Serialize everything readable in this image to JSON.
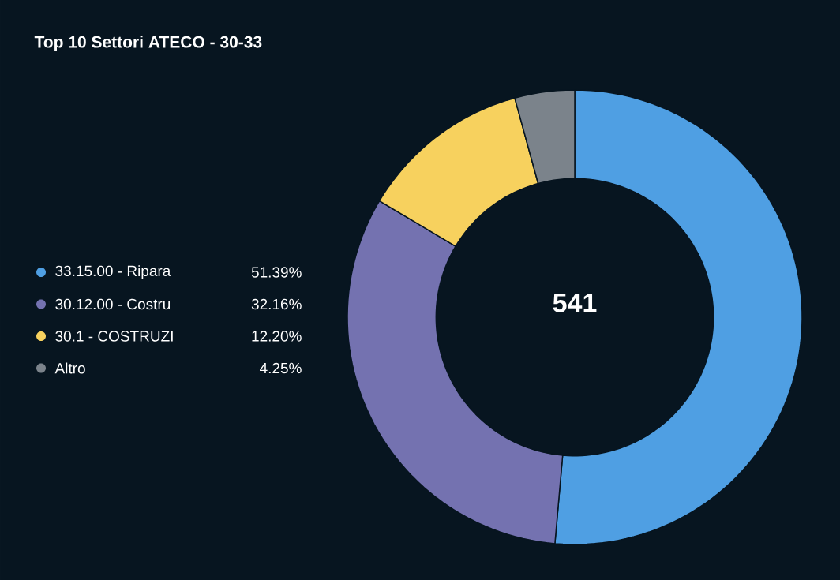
{
  "chart_data": {
    "type": "donut",
    "title": "Top 10 Settori ATECO - 30-33",
    "categories": [
      "33.15.00 - Ripara",
      "30.12.00 - Costru",
      "30.1 - COSTRUZI",
      "Altro"
    ],
    "values": [
      51.39,
      32.16,
      12.2,
      4.25
    ],
    "colors": [
      "#4f9fe3",
      "#7472b0",
      "#f7d15e",
      "#7b838b"
    ],
    "value_labels": [
      "51.39%",
      "32.16%",
      "12.20%",
      "4.25%"
    ],
    "annotations": [
      "541"
    ],
    "legend": "left"
  }
}
